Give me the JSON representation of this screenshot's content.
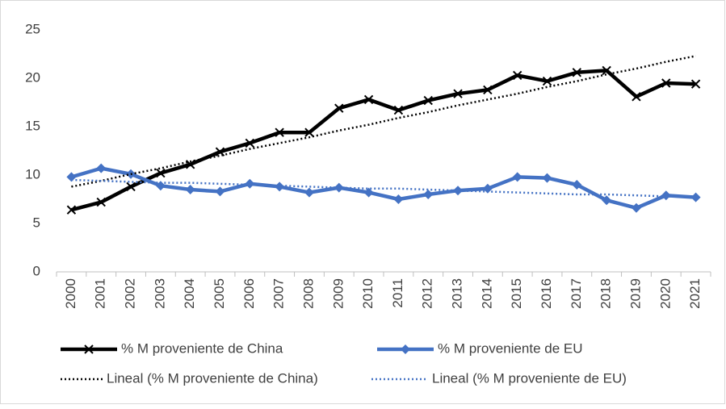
{
  "chart_data": {
    "type": "line",
    "categories": [
      "2000",
      "2001",
      "2002",
      "2003",
      "2004",
      "2005",
      "2006",
      "2007",
      "2008",
      "2009",
      "2010",
      "2011",
      "2012",
      "2013",
      "2014",
      "2015",
      "2016",
      "2017",
      "2018",
      "2019",
      "2020",
      "2021"
    ],
    "series": [
      {
        "name": "% M proveniente de China",
        "color": "#000000",
        "marker": "x",
        "style": "solid",
        "values": [
          6.4,
          7.2,
          8.8,
          10.2,
          11.1,
          12.4,
          13.3,
          14.4,
          14.4,
          16.9,
          17.8,
          16.7,
          17.7,
          18.4,
          18.8,
          20.3,
          19.7,
          20.6,
          20.8,
          18.1,
          19.5,
          19.4
        ]
      },
      {
        "name": "% M proveniente de EU",
        "color": "#4472c4",
        "marker": "diamond",
        "style": "solid",
        "values": [
          9.8,
          10.7,
          10.1,
          8.9,
          8.5,
          8.3,
          9.1,
          8.8,
          8.2,
          8.7,
          8.2,
          7.5,
          8.0,
          8.4,
          8.6,
          9.8,
          9.7,
          9.0,
          7.4,
          6.6,
          7.9,
          7.7
        ]
      },
      {
        "name": "Lineal (% M proveniente de China)",
        "color": "#000000",
        "marker": "none",
        "style": "dotted",
        "values": [
          8.8,
          9.4,
          10.1,
          10.7,
          11.4,
          12.0,
          12.7,
          13.3,
          13.9,
          14.6,
          15.2,
          15.9,
          16.5,
          17.2,
          17.8,
          18.4,
          19.1,
          19.7,
          20.4,
          21.0,
          21.7,
          22.3
        ]
      },
      {
        "name": "Lineal (% M proveniente de EU)",
        "color": "#4472c4",
        "marker": "none",
        "style": "dotted",
        "values": [
          9.5,
          9.4,
          9.3,
          9.2,
          9.2,
          9.1,
          9.0,
          8.9,
          8.8,
          8.7,
          8.6,
          8.6,
          8.5,
          8.4,
          8.3,
          8.2,
          8.1,
          8.0,
          8.0,
          7.9,
          7.8,
          7.7
        ]
      }
    ],
    "ylim": [
      0,
      25
    ],
    "yticks": [
      0,
      5,
      10,
      15,
      20,
      25
    ],
    "grid": false,
    "legend": "bottom"
  }
}
